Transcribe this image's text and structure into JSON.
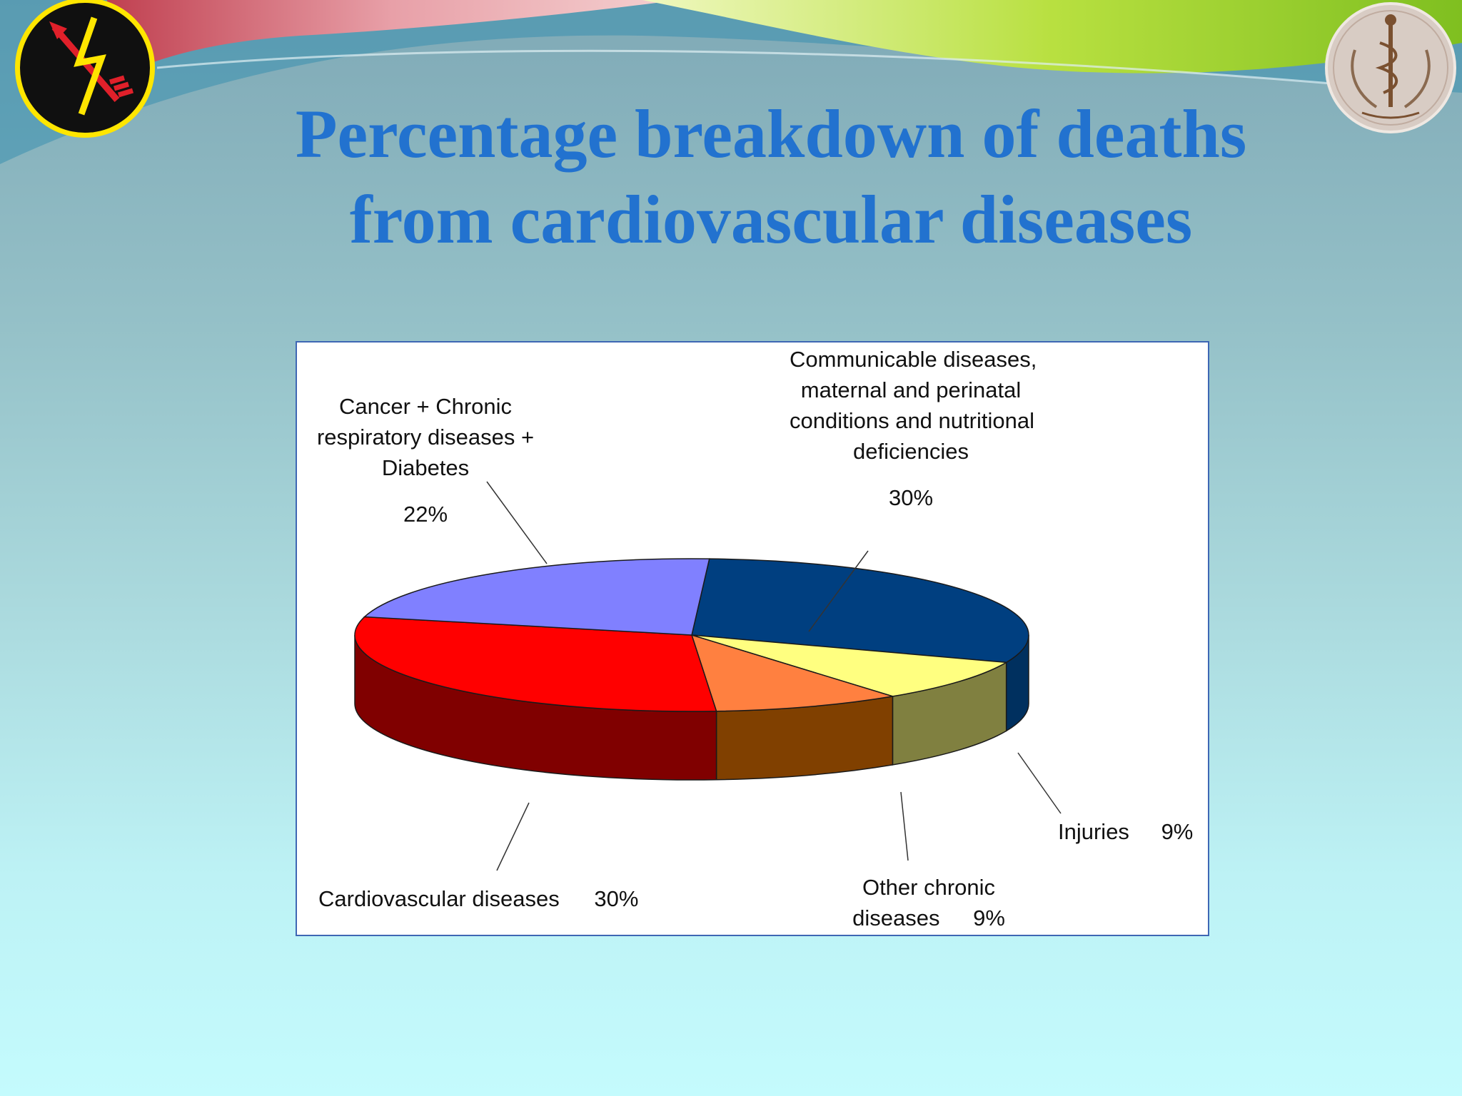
{
  "slide": {
    "title_line1": "Percentage breakdown of deaths",
    "title_line2": "from cardiovascular diseases",
    "accent_color": "#2272cf"
  },
  "chart_data": {
    "type": "pie",
    "three_d": true,
    "slices": [
      {
        "label_lines": [
          "Communicable diseases,",
          "maternal and perinatal",
          "conditions and nutritional",
          "deficiencies"
        ],
        "pct_text": "30%",
        "value": 30,
        "top_color": "#003f80",
        "side_color": "#00305f"
      },
      {
        "label_lines": [
          "Injuries"
        ],
        "pct_text": "9%",
        "value": 9,
        "top_color": "#ffff80",
        "side_color": "#808040"
      },
      {
        "label_lines": [
          "Other chronic",
          "diseases"
        ],
        "pct_text": "9%",
        "value": 9,
        "top_color": "#ff8040",
        "side_color": "#804000"
      },
      {
        "label_lines": [
          "Cardiovascular diseases"
        ],
        "pct_text": "30%",
        "value": 30,
        "top_color": "#ff0000",
        "side_color": "#800000"
      },
      {
        "label_lines": [
          "Cancer + Chronic",
          "respiratory diseases +",
          "Diabetes"
        ],
        "pct_text": "22%",
        "value": 22,
        "top_color": "#8080ff",
        "side_color": "#4040a0"
      }
    ]
  }
}
